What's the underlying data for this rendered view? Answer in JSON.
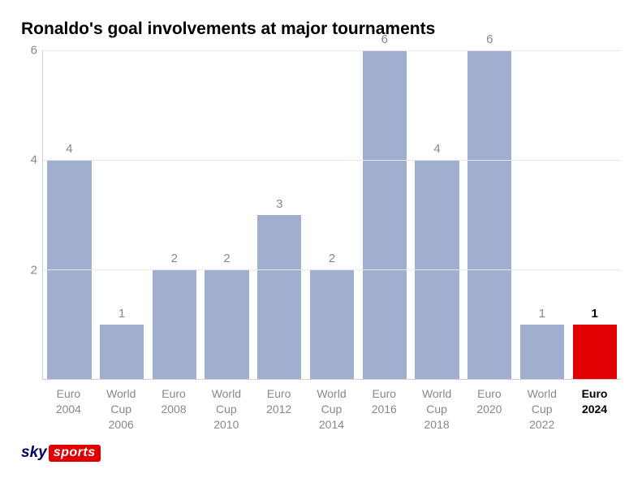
{
  "title": "Ronaldo's goal involvements at major tournaments",
  "chart": {
    "type": "bar",
    "ymax": 6,
    "yticks": [
      2,
      4,
      6
    ],
    "gridline_color": "#e8e8e8",
    "axis_color": "#d0d0d0",
    "default_bar_color": "#a0aed0",
    "default_label_color": "#888888",
    "highlight_bar_color": "#e20000",
    "highlight_label_color": "#000000",
    "bars": [
      {
        "label_line1": "Euro",
        "label_line2": "2004",
        "value": 4,
        "highlight": false
      },
      {
        "label_line1": "World",
        "label_line2": "Cup",
        "label_line3": "2006",
        "value": 1,
        "highlight": false
      },
      {
        "label_line1": "Euro",
        "label_line2": "2008",
        "value": 2,
        "highlight": false
      },
      {
        "label_line1": "World",
        "label_line2": "Cup",
        "label_line3": "2010",
        "value": 2,
        "highlight": false
      },
      {
        "label_line1": "Euro",
        "label_line2": "2012",
        "value": 3,
        "highlight": false
      },
      {
        "label_line1": "World",
        "label_line2": "Cup",
        "label_line3": "2014",
        "value": 2,
        "highlight": false
      },
      {
        "label_line1": "Euro",
        "label_line2": "2016",
        "value": 6,
        "highlight": false
      },
      {
        "label_line1": "World",
        "label_line2": "Cup",
        "label_line3": "2018",
        "value": 4,
        "highlight": false
      },
      {
        "label_line1": "Euro",
        "label_line2": "2020",
        "value": 6,
        "highlight": false
      },
      {
        "label_line1": "World",
        "label_line2": "Cup",
        "label_line3": "2022",
        "value": 1,
        "highlight": false
      },
      {
        "label_line1": "Euro",
        "label_line2": "2024",
        "value": 1,
        "highlight": true
      }
    ]
  },
  "logo": {
    "part1": "sky",
    "part2": "sports"
  }
}
